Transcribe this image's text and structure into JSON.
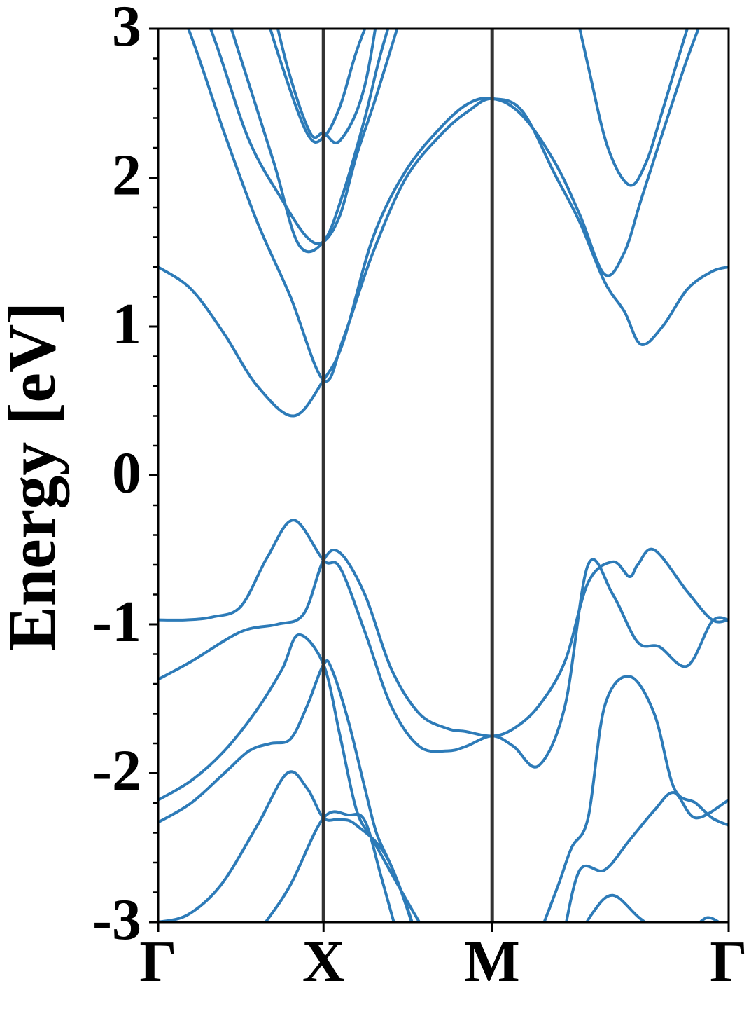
{
  "chart_data": {
    "type": "line",
    "title": "",
    "xlabel": "",
    "ylabel": "Energy [eV]",
    "ylim": [
      -3,
      3
    ],
    "y_ticks": [
      "-3",
      "-2",
      "-1",
      "0",
      "1",
      "2",
      "3"
    ],
    "y_tick_values": [
      -3,
      -2,
      -1,
      0,
      1,
      2,
      3
    ],
    "y_minor_step": 0.2,
    "x_ticks": [
      "Γ",
      "X",
      "M",
      "Γ"
    ],
    "x_tick_positions": [
      0,
      1,
      2.02,
      3.45
    ],
    "x_range": [
      0,
      3.45
    ],
    "grid": false,
    "legend": "none",
    "line_color": "#2d7bb8",
    "divider_color": "#333333",
    "series": [
      {
        "x": [
          0,
          0.17,
          0.33,
          0.5,
          0.66,
          0.82,
          1.0,
          1.1,
          1.25,
          1.41,
          1.58,
          1.75,
          1.86,
          2.02,
          2.15,
          2.3,
          2.46,
          2.6,
          2.75,
          2.9,
          3.03,
          3.2,
          3.35,
          3.45
        ],
        "y": [
          -0.97,
          -0.97,
          -0.95,
          -0.88,
          -0.55,
          -0.3,
          -0.57,
          -0.62,
          -1.05,
          -1.55,
          -1.82,
          -1.85,
          -1.82,
          -1.75,
          -1.82,
          -1.95,
          -1.55,
          -0.6,
          -0.8,
          -1.12,
          -1.15,
          -1.28,
          -0.98,
          -0.97
        ]
      },
      {
        "x": [
          0,
          0.2,
          0.5,
          0.72,
          0.88,
          1.0,
          1.1,
          1.25,
          1.41,
          1.58,
          1.75,
          1.86,
          2.02,
          2.15,
          2.3,
          2.46,
          2.6,
          2.75,
          2.85,
          2.9,
          3.0,
          3.2,
          3.35,
          3.45
        ],
        "y": [
          -1.37,
          -1.25,
          -1.05,
          -1.0,
          -0.93,
          -0.57,
          -0.52,
          -0.8,
          -1.3,
          -1.6,
          -1.7,
          -1.72,
          -1.75,
          -1.7,
          -1.55,
          -1.25,
          -0.72,
          -0.58,
          -0.68,
          -0.6,
          -0.5,
          -0.78,
          -0.97,
          -0.97
        ]
      },
      {
        "x": [
          0,
          0.2,
          0.4,
          0.6,
          0.75,
          0.85,
          1.0,
          1.1,
          1.2,
          1.3,
          1.45,
          1.58,
          1.75
        ],
        "y": [
          -2.18,
          -2.05,
          -1.85,
          -1.57,
          -1.3,
          -1.07,
          -1.27,
          -1.75,
          -2.25,
          -2.45,
          -2.75,
          -3.0,
          -3.3
        ]
      },
      {
        "x": [
          0,
          0.2,
          0.4,
          0.55,
          0.68,
          0.8,
          0.9,
          1.0,
          1.05,
          1.15,
          1.25,
          1.32,
          1.4,
          1.5,
          1.62
        ],
        "y": [
          -2.33,
          -2.2,
          -2.0,
          -1.85,
          -1.8,
          -1.77,
          -1.55,
          -1.27,
          -1.3,
          -1.65,
          -2.1,
          -2.4,
          -2.6,
          -2.88,
          -3.3
        ]
      },
      {
        "x": [
          0,
          0.18,
          0.38,
          0.6,
          0.78,
          0.9,
          1.0,
          1.1,
          1.2,
          1.4,
          1.62
        ],
        "y": [
          -3.0,
          -2.95,
          -2.75,
          -2.35,
          -2.0,
          -2.1,
          -2.3,
          -2.31,
          -2.35,
          -2.6,
          -3.3
        ]
      },
      {
        "x": [
          0.45,
          0.65,
          0.8,
          1.0,
          1.15,
          1.25,
          1.35,
          1.5
        ],
        "y": [
          -3.3,
          -3.0,
          -2.75,
          -2.3,
          -2.28,
          -2.32,
          -2.7,
          -3.3
        ]
      },
      {
        "x": [
          2.3,
          2.42,
          2.5,
          2.6,
          2.7,
          2.85,
          3.0,
          3.12,
          3.25,
          3.35,
          3.45
        ],
        "y": [
          -3.1,
          -2.75,
          -2.5,
          -2.3,
          -1.55,
          -1.35,
          -1.6,
          -2.1,
          -2.2,
          -2.3,
          -2.35
        ]
      },
      {
        "x": [
          2.45,
          2.55,
          2.7,
          2.85,
          3.0,
          3.12,
          3.25,
          3.45
        ],
        "y": [
          -3.1,
          -2.65,
          -2.65,
          -2.45,
          -2.25,
          -2.13,
          -2.3,
          -2.18
        ]
      },
      {
        "x": [
          2.5,
          2.62,
          2.75,
          2.92,
          3.1,
          3.45
        ],
        "y": [
          -3.2,
          -2.95,
          -2.82,
          -2.98,
          -3.1,
          -3.1
        ]
      },
      {
        "x": [
          3.2,
          3.32,
          3.45
        ],
        "y": [
          -3.1,
          -2.97,
          -3.05
        ]
      },
      {
        "x": [
          0,
          0.2,
          0.4,
          0.6,
          0.82,
          1.0,
          1.12,
          1.3,
          1.5,
          1.72,
          1.88,
          2.02,
          2.2,
          2.4,
          2.55,
          2.7,
          2.82,
          2.92,
          3.05,
          3.2,
          3.35,
          3.45
        ],
        "y": [
          1.4,
          1.25,
          0.95,
          0.6,
          0.4,
          0.64,
          0.9,
          1.6,
          2.05,
          2.35,
          2.5,
          2.53,
          2.45,
          2.02,
          1.7,
          1.3,
          1.1,
          0.88,
          1.0,
          1.25,
          1.37,
          1.4
        ]
      },
      {
        "x": [
          0,
          0.2,
          0.4,
          0.6,
          0.8,
          1.0,
          1.12,
          1.3,
          1.5,
          1.72,
          1.88,
          2.02,
          2.2,
          2.4,
          2.55,
          2.7,
          2.82,
          2.92,
          3.05,
          3.2,
          3.32,
          3.45
        ],
        "y": [
          3.5,
          2.95,
          2.3,
          1.7,
          1.2,
          0.64,
          0.92,
          1.5,
          2.0,
          2.3,
          2.45,
          2.53,
          2.42,
          2.1,
          1.75,
          1.35,
          1.5,
          1.85,
          2.3,
          2.8,
          3.15,
          3.5
        ]
      },
      {
        "x": [
          0.15,
          0.35,
          0.55,
          0.75,
          0.9,
          1.0,
          1.1,
          1.2,
          1.32,
          1.5
        ],
        "y": [
          3.5,
          2.9,
          2.25,
          1.85,
          1.6,
          1.57,
          1.75,
          2.15,
          2.55,
          3.2
        ]
      },
      {
        "x": [
          0.3,
          0.5,
          0.7,
          0.85,
          1.0,
          1.12,
          1.25,
          1.35,
          1.5
        ],
        "y": [
          3.5,
          2.8,
          2.1,
          1.55,
          1.57,
          1.9,
          2.4,
          2.85,
          3.4
        ]
      },
      {
        "x": [
          0.55,
          0.72,
          0.9,
          1.0,
          1.1,
          1.2,
          1.32,
          1.42
        ],
        "y": [
          3.5,
          2.85,
          2.3,
          2.27,
          2.48,
          2.85,
          3.2,
          3.5
        ]
      },
      {
        "x": [
          0.62,
          0.78,
          0.92,
          1.0,
          1.1,
          1.25,
          1.38
        ],
        "y": [
          3.5,
          2.75,
          2.3,
          2.3,
          2.25,
          2.62,
          3.5
        ]
      },
      {
        "x": [
          2.45,
          2.6,
          2.72,
          2.85,
          2.95,
          3.05,
          3.2,
          3.35
        ],
        "y": [
          3.5,
          2.75,
          2.2,
          1.95,
          2.1,
          2.45,
          3.0,
          3.5
        ]
      }
    ]
  }
}
